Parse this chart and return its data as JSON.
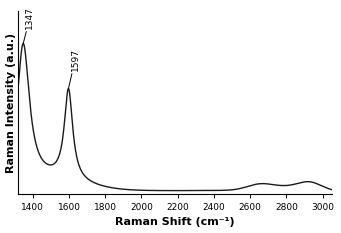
{
  "title": "",
  "xlabel": "Raman Shift (cm⁻¹)",
  "ylabel": "Raman Intensity (a.u.)",
  "peak1_label": "1347",
  "peak2_label": "1597",
  "xlim": [
    1320,
    3050
  ],
  "line_color": "#1a1a1a",
  "line_width": 1.0,
  "bg_color": "#ffffff",
  "xticks": [
    1400,
    1600,
    1800,
    2000,
    2200,
    2400,
    2600,
    2800,
    3000
  ],
  "annotation_fontsize": 6.5,
  "label_fontsize": 8,
  "tick_fontsize": 6.5
}
